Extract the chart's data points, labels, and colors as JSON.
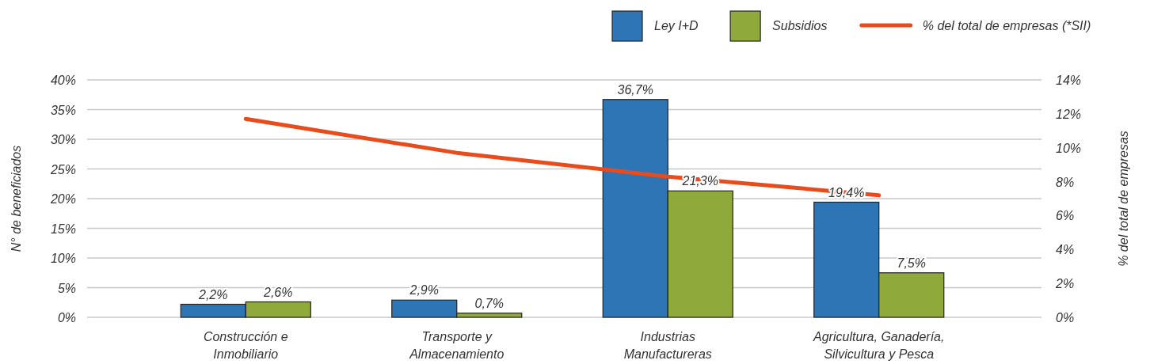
{
  "chart_data": {
    "type": "bar",
    "categories": [
      "Construcción e Inmobiliario",
      "Transporte y Almacenamiento",
      "Industrias Manufactureras",
      "Agricultura, Ganadería, Silvicultura y Pesca"
    ],
    "series": [
      {
        "name": "Ley I+D",
        "color": "#2e75b6",
        "values": [
          2.2,
          2.9,
          36.7,
          19.4
        ],
        "value_labels": [
          "2,2%",
          "2,9%",
          "36,7%",
          "19,4%"
        ]
      },
      {
        "name": "Subsidios",
        "color": "#8faa3a",
        "values": [
          2.6,
          0.7,
          21.3,
          7.5
        ],
        "value_labels": [
          "2,6%",
          "0,7%",
          "21,3%",
          "7,5%"
        ]
      },
      {
        "name": "% del total de empresas (*SII)",
        "type": "line",
        "axis": "y2",
        "color": "#e84c1c",
        "values": [
          11.7,
          9.7,
          8.3,
          7.2
        ]
      }
    ],
    "ylabel": "N° de beneficiados",
    "y2label": "% del total de empresas",
    "ylim": [
      0,
      40
    ],
    "yticks": [
      {
        "value": 0,
        "label": "0%"
      },
      {
        "value": 5,
        "label": "5%"
      },
      {
        "value": 10,
        "label": "10%"
      },
      {
        "value": 15,
        "label": "15%"
      },
      {
        "value": 20,
        "label": "20%"
      },
      {
        "value": 25,
        "label": "25%"
      },
      {
        "value": 30,
        "label": "30%"
      },
      {
        "value": 35,
        "label": "35%"
      },
      {
        "value": 40,
        "label": "40%"
      }
    ],
    "y2lim": [
      0,
      14
    ],
    "y2ticks": [
      {
        "value": 0,
        "label": "0%"
      },
      {
        "value": 2,
        "label": "2%"
      },
      {
        "value": 4,
        "label": "4%"
      },
      {
        "value": 6,
        "label": "6%"
      },
      {
        "value": 8,
        "label": "8%"
      },
      {
        "value": 10,
        "label": "10%"
      },
      {
        "value": 12,
        "label": "12%"
      },
      {
        "value": 14,
        "label": "14%"
      }
    ],
    "grid": "y",
    "legend": "top right",
    "line_style": "solid",
    "marker": "none"
  }
}
